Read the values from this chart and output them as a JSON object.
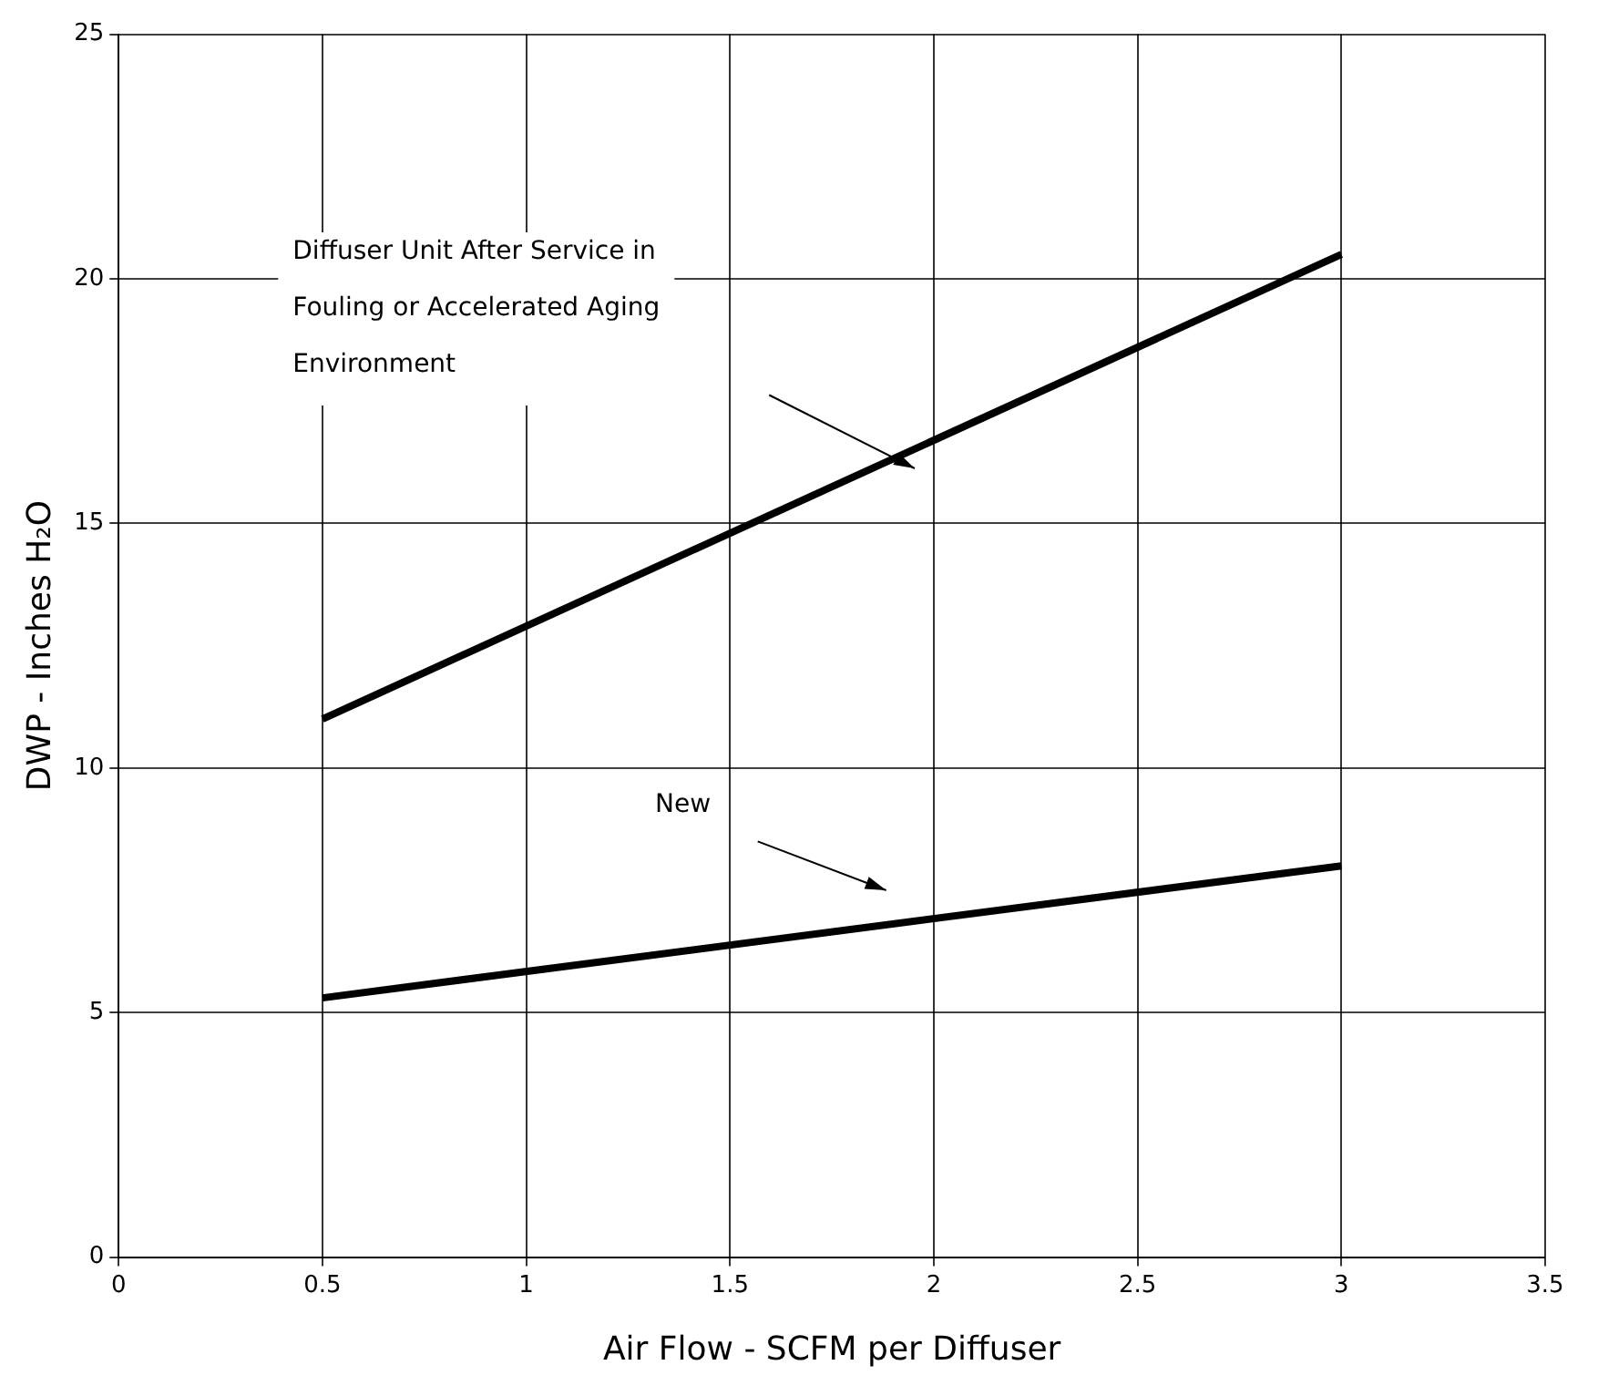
{
  "chart_data": {
    "type": "line",
    "xlabel": "Air Flow - SCFM per Diffuser",
    "ylabel": "DWP - Inches H₂O",
    "x": [
      0.5,
      3
    ],
    "xlim": [
      0,
      3.5
    ],
    "xticks": [
      0,
      0.5,
      1,
      1.5,
      2,
      2.5,
      3,
      3.5
    ],
    "ylim": [
      0,
      25
    ],
    "yticks": [
      0,
      5,
      10,
      15,
      20,
      25
    ],
    "grid": true,
    "legend": false,
    "marker": "none",
    "line_style": "solid",
    "series": [
      {
        "color": "#000000",
        "values": [
          11.0,
          20.5
        ]
      },
      {
        "color": "#000000",
        "values": [
          5.3,
          8.0
        ]
      }
    ],
    "annotations": [
      "Diffuser Unit After Service in Fouling or Accelerated Aging Environment",
      "New"
    ]
  }
}
